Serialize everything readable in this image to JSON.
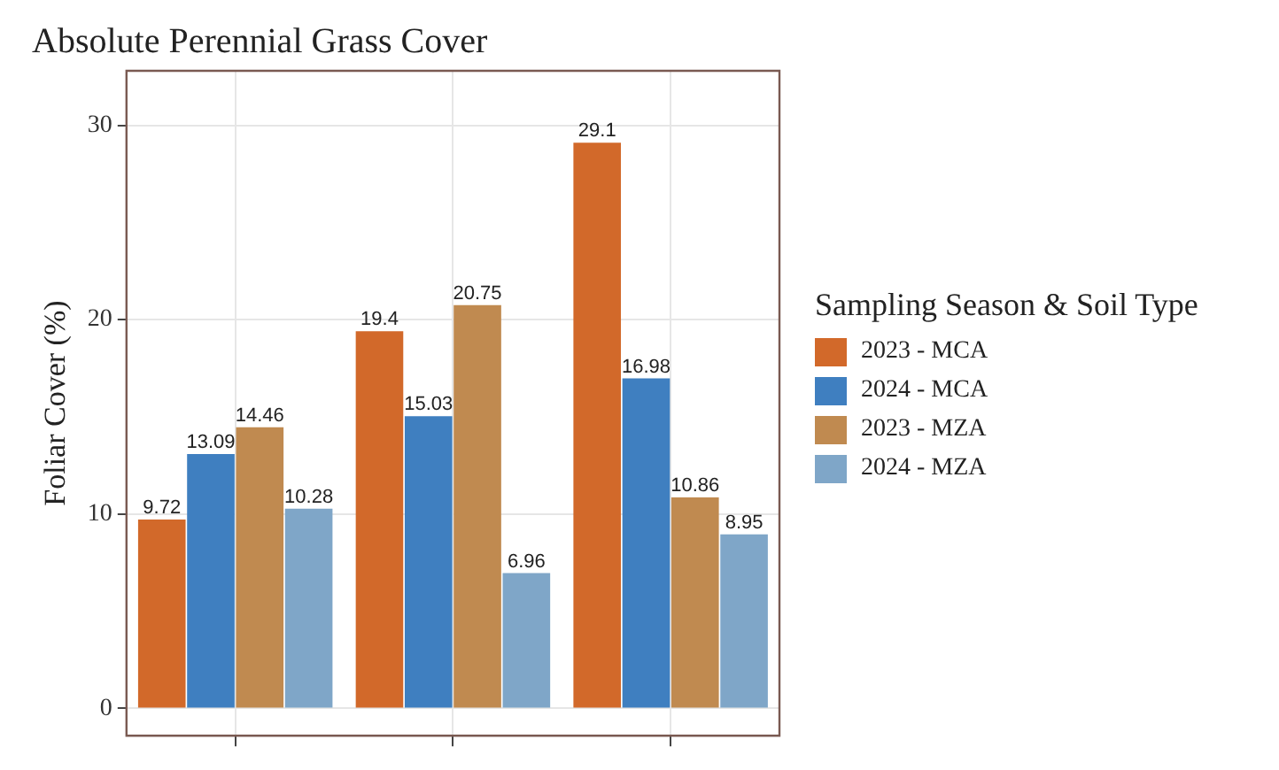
{
  "chart_data": {
    "type": "bar",
    "title": "Absolute Perennial Grass Cover",
    "ylabel": "Foliar Cover (%)",
    "legend_title": "Sampling Season & Soil Type",
    "categories": [
      null,
      null,
      null
    ],
    "series": [
      {
        "name": "2023 - MCA",
        "color": "#d2692a",
        "values": [
          9.72,
          19.4,
          29.1
        ]
      },
      {
        "name": "2024 - MCA",
        "color": "#3f7fc0",
        "values": [
          13.09,
          15.03,
          16.98
        ]
      },
      {
        "name": "2023 - MZA",
        "color": "#c08a50",
        "values": [
          14.46,
          20.75,
          10.86
        ]
      },
      {
        "name": "2024 - MZA",
        "color": "#7fa6c8",
        "values": [
          10.28,
          6.96,
          8.95
        ]
      }
    ],
    "ylim": [
      -1.4,
      32.8
    ],
    "yticks": [
      0,
      10,
      20,
      30
    ],
    "grid": true,
    "legend": "right",
    "tick_labels": "y",
    "data_labels": true
  }
}
